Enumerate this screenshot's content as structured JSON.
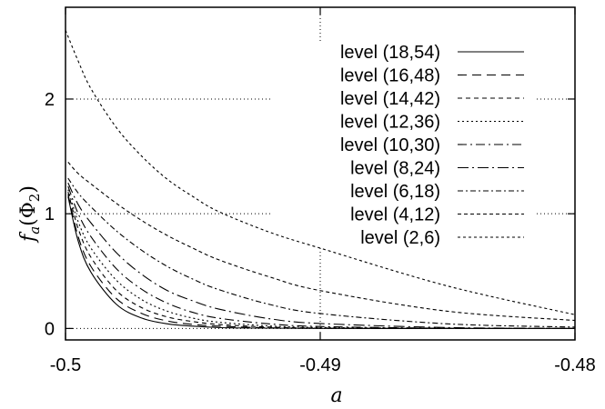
{
  "chart_data": {
    "type": "line",
    "xlabel": "a",
    "ylabel": {
      "main": "f",
      "sub": "a",
      "paren_open": "(Φ",
      "paren_sub": "2",
      "paren_close": ")"
    },
    "xlim": [
      -0.5,
      -0.48
    ],
    "ylim": [
      -0.1,
      2.8
    ],
    "xticks": [
      -0.5,
      -0.49,
      -0.48
    ],
    "xtick_labels": [
      "-0.5",
      "-0.49",
      "-0.48"
    ],
    "yticks": [
      0,
      1,
      2
    ],
    "ytick_labels": [
      "0",
      "1",
      "2"
    ],
    "grid": "dotted",
    "legend_position": "top-right",
    "series": [
      {
        "name": "level (18,54)",
        "dash": "",
        "x": [
          -0.4999,
          -0.4995,
          -0.499,
          -0.498,
          -0.497,
          -0.496,
          -0.495,
          -0.494,
          -0.493,
          -0.49,
          -0.485,
          -0.48
        ],
        "y": [
          1.15,
          0.76,
          0.49,
          0.21,
          0.09,
          0.04,
          0.02,
          0.008,
          0.004,
          0.0,
          0.0,
          0.0
        ]
      },
      {
        "name": "level (16,48)",
        "dash": "10,6",
        "x": [
          -0.4999,
          -0.4995,
          -0.499,
          -0.498,
          -0.497,
          -0.496,
          -0.495,
          -0.494,
          -0.492,
          -0.49,
          -0.485,
          -0.48
        ],
        "y": [
          1.17,
          0.8,
          0.54,
          0.26,
          0.13,
          0.065,
          0.035,
          0.02,
          0.006,
          0.002,
          0.0,
          0.0
        ]
      },
      {
        "name": "level (14,42)",
        "dash": "5,4",
        "x": [
          -0.4999,
          -0.4995,
          -0.499,
          -0.498,
          -0.497,
          -0.496,
          -0.495,
          -0.494,
          -0.492,
          -0.49,
          -0.485,
          -0.48
        ],
        "y": [
          1.19,
          0.87,
          0.62,
          0.33,
          0.18,
          0.1,
          0.06,
          0.035,
          0.012,
          0.004,
          0.0,
          0.0
        ]
      },
      {
        "name": "level (12,36)",
        "dash": "2,3",
        "x": [
          -0.4999,
          -0.4995,
          -0.499,
          -0.498,
          -0.497,
          -0.496,
          -0.495,
          -0.494,
          -0.492,
          -0.49,
          -0.485,
          -0.48
        ],
        "y": [
          1.21,
          0.93,
          0.7,
          0.42,
          0.25,
          0.15,
          0.09,
          0.055,
          0.022,
          0.009,
          0.001,
          0.0
        ]
      },
      {
        "name": "level (10,30)",
        "dash": "10,4,2,4",
        "x": [
          -0.4999,
          -0.4995,
          -0.499,
          -0.498,
          -0.497,
          -0.496,
          -0.495,
          -0.494,
          -0.492,
          -0.49,
          -0.485,
          -0.48
        ],
        "y": [
          1.24,
          1.0,
          0.8,
          0.52,
          0.34,
          0.22,
          0.14,
          0.09,
          0.04,
          0.017,
          0.002,
          0.0
        ]
      },
      {
        "name": "level (8,24)",
        "dash": "12,4,2,4",
        "x": [
          -0.4999,
          -0.4995,
          -0.499,
          -0.498,
          -0.497,
          -0.496,
          -0.495,
          -0.494,
          -0.492,
          -0.49,
          -0.485,
          -0.48
        ],
        "y": [
          1.27,
          1.08,
          0.92,
          0.66,
          0.47,
          0.33,
          0.24,
          0.17,
          0.085,
          0.043,
          0.008,
          0.001
        ]
      },
      {
        "name": "level (6,18)",
        "dash": "6,3,2,3",
        "x": [
          -0.4999,
          -0.4995,
          -0.499,
          -0.498,
          -0.497,
          -0.496,
          -0.495,
          -0.494,
          -0.492,
          -0.49,
          -0.485,
          -0.48
        ],
        "y": [
          1.31,
          1.18,
          1.06,
          0.85,
          0.68,
          0.54,
          0.43,
          0.34,
          0.21,
          0.13,
          0.04,
          0.012
        ]
      },
      {
        "name": "level (4,12)",
        "dash": "4,3",
        "x": [
          -0.4999,
          -0.4995,
          -0.499,
          -0.498,
          -0.497,
          -0.496,
          -0.495,
          -0.494,
          -0.492,
          -0.49,
          -0.485,
          -0.48
        ],
        "y": [
          1.45,
          1.35,
          1.26,
          1.09,
          0.94,
          0.81,
          0.7,
          0.6,
          0.45,
          0.33,
          0.15,
          0.07
        ]
      },
      {
        "name": "level (2,6)",
        "dash": "3,3",
        "x": [
          -0.5,
          -0.4995,
          -0.499,
          -0.498,
          -0.497,
          -0.496,
          -0.495,
          -0.494,
          -0.492,
          -0.49,
          -0.485,
          -0.48
        ],
        "y": [
          2.6,
          2.33,
          2.09,
          1.75,
          1.5,
          1.3,
          1.15,
          1.02,
          0.84,
          0.7,
          0.37,
          0.12
        ]
      }
    ]
  }
}
